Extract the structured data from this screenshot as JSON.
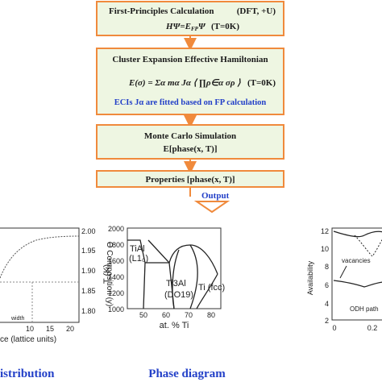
{
  "flowchart": {
    "boxes": [
      {
        "title": "First-Principles Calculation",
        "note": "(DFT, +U)",
        "formula": "HΨ=E",
        "formula_sub": "FP",
        "formula_tail": "Ψ",
        "condition": "(T=0K)"
      },
      {
        "title": "Cluster Expansion Effective Hamiltonian",
        "formula": "E(σ) = Σα mα Jα ⟨ ∏ρ∈α σρ ⟩",
        "condition": "(T=0K)",
        "note": "ECIs Jα are fitted based on FP calculation"
      },
      {
        "title": "Monte Carlo Simulation",
        "formula": "E[phase(x, T)]"
      },
      {
        "title": "Properties [phase(x, T)]"
      }
    ],
    "output": "Output"
  },
  "panels": [
    {
      "caption": "istribution",
      "x_label": "ce (lattice units)",
      "y_label": "O Composition (y)",
      "xticks": [
        "10",
        "15",
        "20"
      ],
      "yticks": [
        "2.00",
        "1.95",
        "1.90",
        "1.85",
        "1.80"
      ],
      "annotation": "width"
    },
    {
      "caption": "Phase diagram",
      "x_label": "at. % Ti",
      "y_label": "T (K)",
      "xticks": [
        "50",
        "60",
        "70",
        "80"
      ],
      "yticks": [
        "2000",
        "1800",
        "1600",
        "1400",
        "1200",
        "1000"
      ],
      "labels": [
        "TiAl",
        "(L1₀)",
        "Ti3Al",
        "(DO19)",
        "Ti (fcc)"
      ]
    },
    {
      "y_label": "Availability",
      "xticks": [
        "0",
        "0.2"
      ],
      "yticks": [
        "12",
        "10",
        "8",
        "6",
        "4",
        "2"
      ],
      "labels": [
        "vacancies",
        "ODH path"
      ]
    }
  ]
}
